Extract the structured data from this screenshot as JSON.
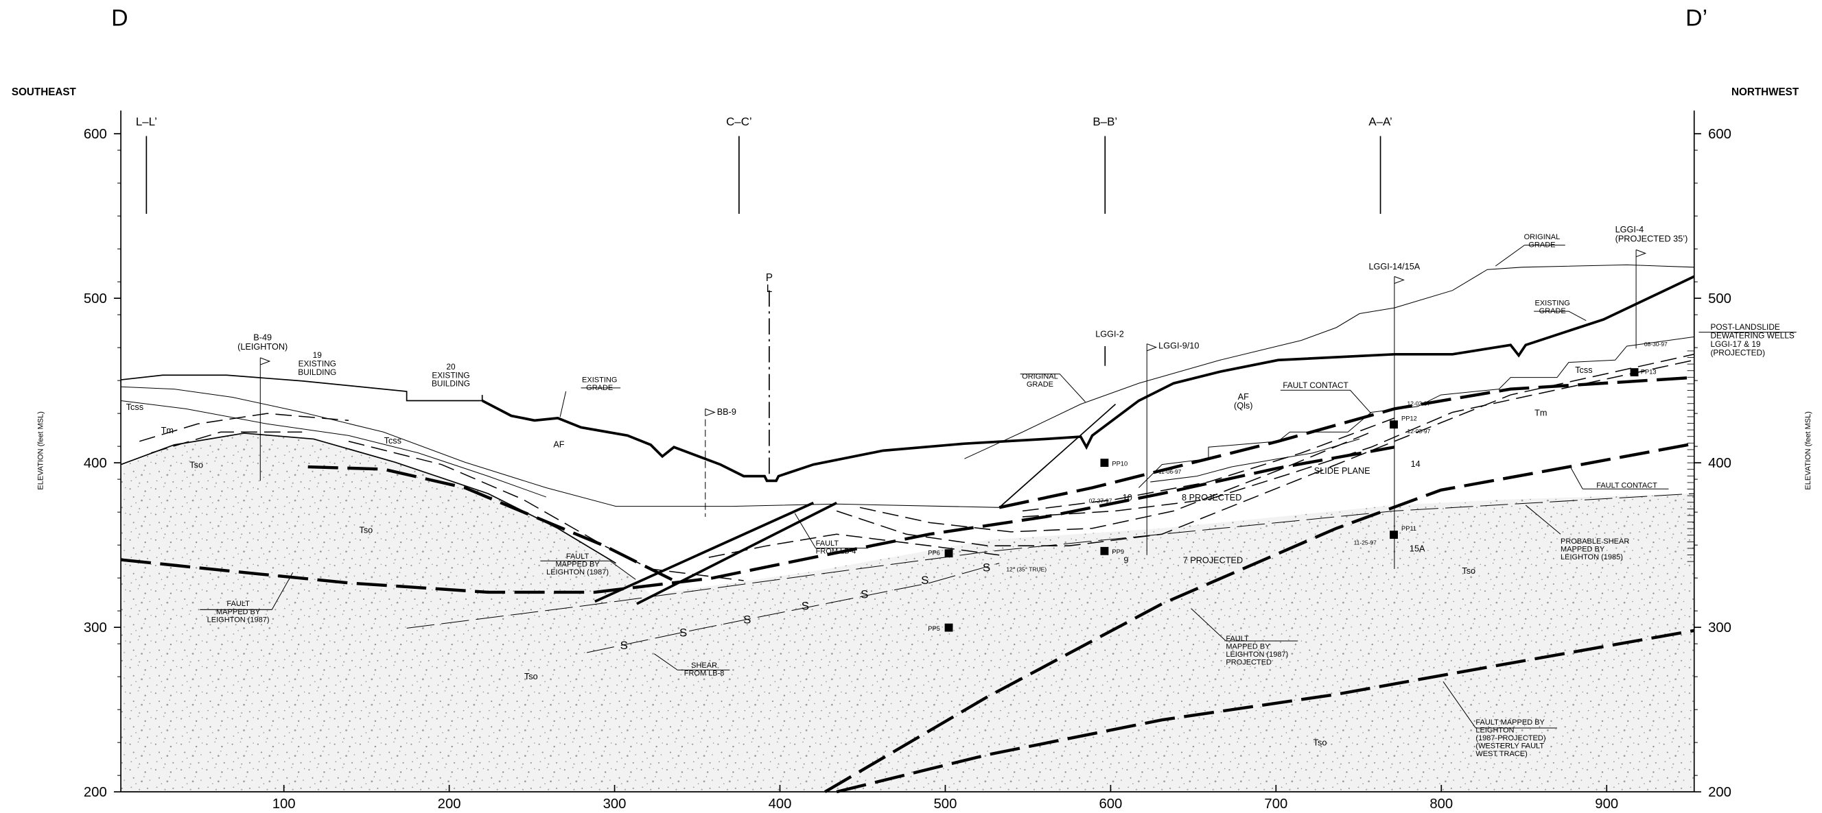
{
  "axes": {
    "elevation_label": "ELEVATION (feet MSL)",
    "elevation_ticks": [
      600,
      500,
      400,
      300,
      200
    ],
    "distance_ticks": [
      100,
      200,
      300,
      400,
      500,
      600,
      700,
      800,
      900
    ]
  },
  "annotations": [
    {
      "lines": [
        "D"
      ]
    },
    {
      "lines": [
        "D’"
      ]
    },
    {
      "lines": [
        "SOUTHEAST"
      ]
    },
    {
      "lines": [
        "NORTHWEST"
      ]
    },
    {
      "lines": [
        "L–L’"
      ]
    },
    {
      "lines": [
        "C–C’"
      ]
    },
    {
      "lines": [
        "B–B’"
      ]
    },
    {
      "lines": [
        "A–A’"
      ]
    },
    {
      "lines": [
        "B-49",
        "(LEIGHTON)"
      ]
    },
    {
      "lines": [
        "19",
        "EXISTING",
        "BUILDING"
      ]
    },
    {
      "lines": [
        "20",
        "EXISTING",
        "BUILDING"
      ]
    },
    {
      "lines": [
        "EXISTING",
        "GRADE"
      ]
    },
    {
      "lines": [
        "BB-9"
      ]
    },
    {
      "lines": [
        "P",
        "L"
      ]
    },
    {
      "lines": [
        "LGGI-2"
      ]
    },
    {
      "lines": [
        "LGGI-9/10"
      ]
    },
    {
      "lines": [
        "ORIGINAL",
        "GRADE"
      ]
    },
    {
      "lines": [
        "AF",
        "(Qls)"
      ]
    },
    {
      "lines": [
        "FAULT CONTACT"
      ]
    },
    {
      "lines": [
        "LGGI-14/15A"
      ]
    },
    {
      "lines": [
        "ORIGINAL",
        "GRADE"
      ]
    },
    {
      "lines": [
        "EXISTING",
        "GRADE"
      ]
    },
    {
      "lines": [
        "LGGI-4",
        "(PROJECTED 35’)"
      ]
    },
    {
      "lines": [
        "POST-LANDSLIDE",
        "DEWATERING WELLS",
        "LGGI-17 & 19",
        "(PROJECTED)"
      ]
    },
    {
      "lines": [
        "Tcss"
      ]
    },
    {
      "lines": [
        "Tm"
      ]
    },
    {
      "lines": [
        "Tso"
      ]
    },
    {
      "lines": [
        "Tcss"
      ]
    },
    {
      "lines": [
        "AF"
      ]
    },
    {
      "lines": [
        "Tso"
      ]
    },
    {
      "lines": [
        "Tcss"
      ]
    },
    {
      "lines": [
        "Tm"
      ]
    },
    {
      "lines": [
        "PP10"
      ]
    },
    {
      "lines": [
        "11-06-97"
      ]
    },
    {
      "lines": [
        "07-27-97"
      ]
    },
    {
      "lines": [
        "10"
      ]
    },
    {
      "lines": [
        "8 PROJECTED"
      ]
    },
    {
      "lines": [
        "SLIDE PLANE"
      ]
    },
    {
      "lines": [
        "PP12"
      ]
    },
    {
      "lines": [
        "12-03-97"
      ]
    },
    {
      "lines": [
        "12-03-97"
      ]
    },
    {
      "lines": [
        "14"
      ]
    },
    {
      "lines": [
        "PP13"
      ]
    },
    {
      "lines": [
        "08-30-97"
      ]
    },
    {
      "lines": [
        "FAULT CONTACT"
      ]
    },
    {
      "lines": [
        "PP11"
      ]
    },
    {
      "lines": [
        "11-25-97"
      ]
    },
    {
      "lines": [
        "15A"
      ]
    },
    {
      "lines": [
        "PROBABLE SHEAR",
        "MAPPED BY",
        "LEIGHTON (1985)"
      ]
    },
    {
      "lines": [
        "FAULT",
        "MAPPED BY",
        "LEIGHTON (1987)"
      ]
    },
    {
      "lines": [
        "FAULT",
        "MAPPED BY",
        "LEIGHTON (1987)"
      ]
    },
    {
      "lines": [
        "FAULT",
        "FROM LB-4"
      ]
    },
    {
      "lines": [
        "PP6"
      ]
    },
    {
      "lines": [
        "PP9"
      ]
    },
    {
      "lines": [
        "9"
      ]
    },
    {
      "lines": [
        "7 PROJECTED"
      ]
    },
    {
      "lines": [
        "12° (35° TRUE)"
      ]
    },
    {
      "lines": [
        "PP5"
      ]
    },
    {
      "lines": [
        "SHEAR",
        "FROM LB-8"
      ]
    },
    {
      "lines": [
        "FAULT",
        "MAPPED BY",
        "LEIGHTON (1987)",
        "PROJECTED"
      ]
    },
    {
      "lines": [
        "FAULT MAPPED BY",
        "LEIGHTON",
        "(1987-PROJECTED)",
        "(WESTERLY FAULT",
        "WEST TRACE)"
      ]
    },
    {
      "lines": [
        "Tso"
      ]
    },
    {
      "lines": [
        "Tso"
      ]
    },
    {
      "lines": [
        "Tso"
      ]
    }
  ],
  "shear_marks": [
    "S",
    "S",
    "S",
    "S",
    "S",
    "S",
    "S"
  ]
}
